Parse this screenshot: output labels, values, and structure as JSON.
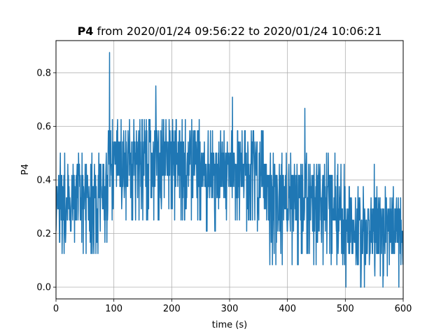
{
  "chart_data": {
    "type": "line",
    "title_bold": "P4",
    "title_rest": " from 2020/01/24 09:56:22 to 2020/01/24 10:06:21",
    "xlabel": "time (s)",
    "ylabel": "P4",
    "xlim": [
      0,
      600
    ],
    "ylim": [
      -0.044,
      0.92
    ],
    "xticks": [
      0,
      100,
      200,
      300,
      400,
      500,
      600
    ],
    "yticks": [
      0.0,
      0.2,
      0.4,
      0.6,
      0.8
    ],
    "ytick_labels": [
      "0.0",
      "0.2",
      "0.4",
      "0.6",
      "0.8"
    ],
    "grid": true,
    "series": [
      {
        "color": "#1f77b4",
        "segments": [
          {
            "x": [
              0,
              90
            ],
            "center": 0.33,
            "low": 0.13,
            "high": 0.5,
            "peak": 0.5
          },
          {
            "x": [
              90,
              95
            ],
            "center": 0.55,
            "low": 0.38,
            "high": 0.72,
            "peak": 0.875
          },
          {
            "x": [
              95,
              250
            ],
            "center": 0.48,
            "low": 0.25,
            "high": 0.63,
            "peak": 0.75
          },
          {
            "x": [
              250,
              360
            ],
            "center": 0.42,
            "low": 0.21,
            "high": 0.58,
            "peak": 0.72
          },
          {
            "x": [
              360,
              500
            ],
            "center": 0.33,
            "low": 0.08,
            "high": 0.5,
            "peak": 0.67
          },
          {
            "x": [
              500,
              600
            ],
            "center": 0.22,
            "low": 0.0,
            "high": 0.38,
            "peak": 0.45
          }
        ]
      }
    ]
  }
}
